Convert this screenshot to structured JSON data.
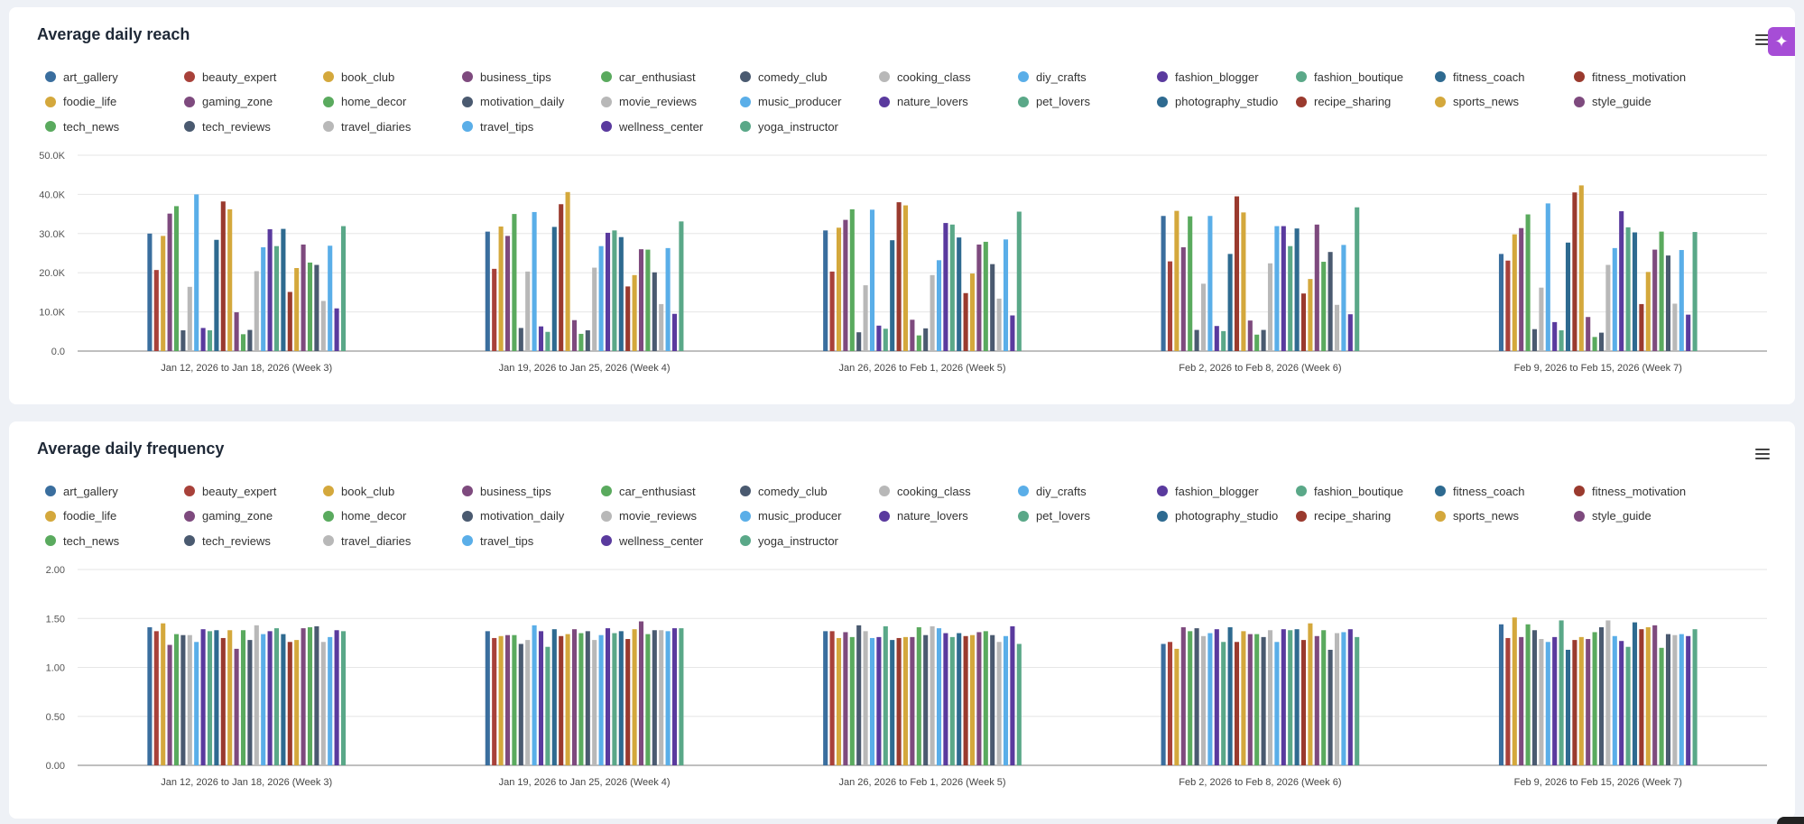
{
  "colors": [
    "#3a6e9e",
    "#a8413a",
    "#d4a83c",
    "#7e4a7e",
    "#5aaa5e",
    "#4a5a70",
    "#b8b8b8",
    "#5aaee8",
    "#5a3a9e",
    "#5aa888",
    "#2e6a90",
    "#9a3a2e",
    "#d4a83c",
    "#7e4a7e",
    "#5aaa5e",
    "#4a5a70",
    "#b8b8b8",
    "#5aaee8",
    "#5a3a9e",
    "#5aa888",
    "#2e6a90",
    "#9a3a2e",
    "#d4a83c",
    "#7e4a7e",
    "#5aaa5e",
    "#4a5a70",
    "#b8b8b8",
    "#5aaee8",
    "#5a3a9e",
    "#5aa888"
  ],
  "charts": [
    {
      "title": "Average daily reach",
      "menu_icon": "hamburger-menu-icon",
      "chart_data": {
        "type": "bar",
        "categories": [
          "Jan 12, 2026 to Jan 18, 2026 (Week 3)",
          "Jan 19, 2026 to Jan 25, 2026 (Week 4)",
          "Jan 26, 2026 to Feb 1, 2026 (Week 5)",
          "Feb 2, 2026 to Feb 8, 2026 (Week 6)",
          "Feb 9, 2026 to Feb 15, 2026 (Week 7)"
        ],
        "yticks": [
          "0.0",
          "10.0K",
          "20.0K",
          "30.0K",
          "40.0K",
          "50.0K"
        ],
        "ylim": [
          0,
          50000
        ],
        "grid": true,
        "legend_position": "top",
        "series": [
          {
            "name": "art_gallery",
            "values": [
              30000,
              30500,
              30800,
              34500,
              24800
            ]
          },
          {
            "name": "beauty_expert",
            "values": [
              20700,
              21000,
              20300,
              22900,
              23100
            ]
          },
          {
            "name": "book_club",
            "values": [
              29400,
              31800,
              31500,
              35800,
              29800
            ]
          },
          {
            "name": "business_tips",
            "values": [
              35100,
              29400,
              33500,
              26500,
              31400
            ]
          },
          {
            "name": "car_enthusiast",
            "values": [
              37000,
              35000,
              36200,
              34400,
              34900
            ]
          },
          {
            "name": "comedy_club",
            "values": [
              5300,
              5900,
              4800,
              5400,
              5600
            ]
          },
          {
            "name": "cooking_class",
            "values": [
              16400,
              20300,
              16800,
              17200,
              16200
            ]
          },
          {
            "name": "diy_crafts",
            "values": [
              40000,
              35500,
              36100,
              34500,
              37700
            ]
          },
          {
            "name": "fashion_blogger",
            "values": [
              5900,
              6300,
              6500,
              6400,
              7400
            ]
          },
          {
            "name": "fashion_boutique",
            "values": [
              5300,
              4900,
              5700,
              5100,
              5300
            ]
          },
          {
            "name": "fitness_coach",
            "values": [
              28400,
              31700,
              28300,
              24800,
              27700
            ]
          },
          {
            "name": "fitness_motivation",
            "values": [
              38200,
              37500,
              38000,
              39500,
              40500
            ]
          },
          {
            "name": "foodie_life",
            "values": [
              36200,
              40600,
              37200,
              35400,
              42300
            ]
          },
          {
            "name": "gaming_zone",
            "values": [
              9900,
              7900,
              8000,
              7800,
              8700
            ]
          },
          {
            "name": "home_decor",
            "values": [
              4300,
              4400,
              4000,
              4200,
              3600
            ]
          },
          {
            "name": "motivation_daily",
            "values": [
              5400,
              5300,
              5800,
              5400,
              4700
            ]
          },
          {
            "name": "movie_reviews",
            "values": [
              20400,
              21300,
              19400,
              22400,
              22000
            ]
          },
          {
            "name": "music_producer",
            "values": [
              26500,
              26800,
              23200,
              31900,
              26300
            ]
          },
          {
            "name": "nature_lovers",
            "values": [
              31100,
              30200,
              32700,
              31900,
              35700
            ]
          },
          {
            "name": "pet_lovers",
            "values": [
              26800,
              30800,
              32300,
              26800,
              31600
            ]
          },
          {
            "name": "photography_studio",
            "values": [
              31200,
              29100,
              29000,
              31300,
              30300
            ]
          },
          {
            "name": "recipe_sharing",
            "values": [
              15100,
              16500,
              14800,
              14700,
              12000
            ]
          },
          {
            "name": "sports_news",
            "values": [
              21200,
              19400,
              19800,
              18400,
              20200
            ]
          },
          {
            "name": "style_guide",
            "values": [
              27200,
              26000,
              27200,
              32300,
              25900
            ]
          },
          {
            "name": "tech_news",
            "values": [
              22600,
              25900,
              27900,
              22800,
              30500
            ]
          },
          {
            "name": "tech_reviews",
            "values": [
              22000,
              20100,
              22200,
              25300,
              24400
            ]
          },
          {
            "name": "travel_diaries",
            "values": [
              12800,
              12000,
              13400,
              11800,
              12100
            ]
          },
          {
            "name": "travel_tips",
            "values": [
              26900,
              26300,
              28500,
              27100,
              25800
            ]
          },
          {
            "name": "wellness_center",
            "values": [
              10900,
              9500,
              9100,
              9400,
              9300
            ]
          },
          {
            "name": "yoga_instructor",
            "values": [
              31900,
              33100,
              35600,
              36700,
              30400
            ]
          }
        ]
      }
    },
    {
      "title": "Average daily frequency",
      "menu_icon": "hamburger-menu-icon",
      "chart_data": {
        "type": "bar",
        "categories": [
          "Jan 12, 2026 to Jan 18, 2026 (Week 3)",
          "Jan 19, 2026 to Jan 25, 2026 (Week 4)",
          "Jan 26, 2026 to Feb 1, 2026 (Week 5)",
          "Feb 2, 2026 to Feb 8, 2026 (Week 6)",
          "Feb 9, 2026 to Feb 15, 2026 (Week 7)"
        ],
        "yticks": [
          "0.00",
          "0.50",
          "1.00",
          "1.50",
          "2.00"
        ],
        "ylim": [
          0,
          2
        ],
        "grid": true,
        "legend_position": "top",
        "series": [
          {
            "name": "art_gallery",
            "values": [
              1.41,
              1.37,
              1.37,
              1.24,
              1.44
            ]
          },
          {
            "name": "beauty_expert",
            "values": [
              1.37,
              1.3,
              1.37,
              1.26,
              1.3
            ]
          },
          {
            "name": "book_club",
            "values": [
              1.45,
              1.32,
              1.3,
              1.19,
              1.51
            ]
          },
          {
            "name": "business_tips",
            "values": [
              1.23,
              1.33,
              1.36,
              1.41,
              1.31
            ]
          },
          {
            "name": "car_enthusiast",
            "values": [
              1.34,
              1.33,
              1.31,
              1.37,
              1.44
            ]
          },
          {
            "name": "comedy_club",
            "values": [
              1.33,
              1.24,
              1.43,
              1.4,
              1.38
            ]
          },
          {
            "name": "cooking_class",
            "values": [
              1.33,
              1.28,
              1.37,
              1.32,
              1.29
            ]
          },
          {
            "name": "diy_crafts",
            "values": [
              1.26,
              1.43,
              1.3,
              1.35,
              1.26
            ]
          },
          {
            "name": "fashion_blogger",
            "values": [
              1.39,
              1.37,
              1.31,
              1.39,
              1.31
            ]
          },
          {
            "name": "fashion_boutique",
            "values": [
              1.37,
              1.21,
              1.42,
              1.26,
              1.48
            ]
          },
          {
            "name": "fitness_coach",
            "values": [
              1.38,
              1.39,
              1.28,
              1.41,
              1.18
            ]
          },
          {
            "name": "fitness_motivation",
            "values": [
              1.3,
              1.32,
              1.3,
              1.26,
              1.28
            ]
          },
          {
            "name": "foodie_life",
            "values": [
              1.38,
              1.34,
              1.31,
              1.37,
              1.31
            ]
          },
          {
            "name": "gaming_zone",
            "values": [
              1.19,
              1.39,
              1.31,
              1.34,
              1.29
            ]
          },
          {
            "name": "home_decor",
            "values": [
              1.38,
              1.35,
              1.41,
              1.34,
              1.36
            ]
          },
          {
            "name": "motivation_daily",
            "values": [
              1.28,
              1.37,
              1.33,
              1.31,
              1.41
            ]
          },
          {
            "name": "movie_reviews",
            "values": [
              1.43,
              1.28,
              1.42,
              1.38,
              1.48
            ]
          },
          {
            "name": "music_producer",
            "values": [
              1.34,
              1.33,
              1.4,
              1.26,
              1.32
            ]
          },
          {
            "name": "nature_lovers",
            "values": [
              1.37,
              1.4,
              1.35,
              1.39,
              1.27
            ]
          },
          {
            "name": "pet_lovers",
            "values": [
              1.4,
              1.35,
              1.31,
              1.38,
              1.21
            ]
          },
          {
            "name": "photography_studio",
            "values": [
              1.34,
              1.37,
              1.35,
              1.39,
              1.46
            ]
          },
          {
            "name": "recipe_sharing",
            "values": [
              1.26,
              1.29,
              1.32,
              1.28,
              1.39
            ]
          },
          {
            "name": "sports_news",
            "values": [
              1.28,
              1.39,
              1.33,
              1.45,
              1.41
            ]
          },
          {
            "name": "style_guide",
            "values": [
              1.4,
              1.47,
              1.36,
              1.32,
              1.43
            ]
          },
          {
            "name": "tech_news",
            "values": [
              1.41,
              1.34,
              1.37,
              1.38,
              1.2
            ]
          },
          {
            "name": "tech_reviews",
            "values": [
              1.42,
              1.38,
              1.33,
              1.18,
              1.34
            ]
          },
          {
            "name": "travel_diaries",
            "values": [
              1.26,
              1.38,
              1.26,
              1.35,
              1.33
            ]
          },
          {
            "name": "travel_tips",
            "values": [
              1.31,
              1.37,
              1.32,
              1.36,
              1.34
            ]
          },
          {
            "name": "wellness_center",
            "values": [
              1.38,
              1.4,
              1.42,
              1.39,
              1.32
            ]
          },
          {
            "name": "yoga_instructor",
            "values": [
              1.37,
              1.4,
              1.24,
              1.31,
              1.39
            ]
          }
        ]
      }
    }
  ]
}
